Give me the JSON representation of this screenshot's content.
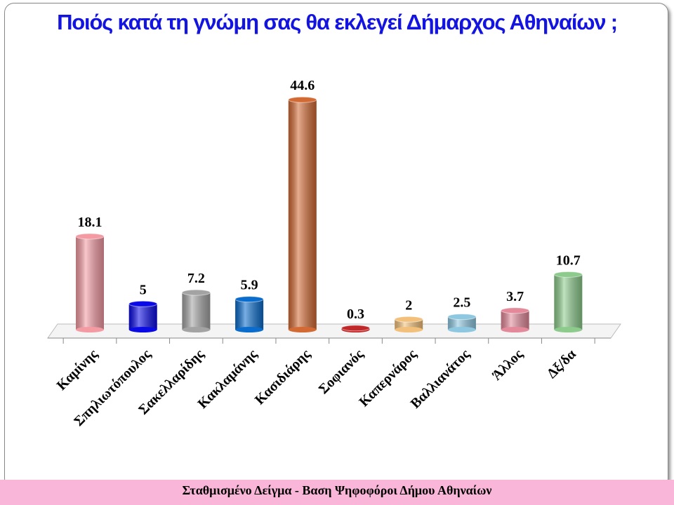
{
  "chart_data": {
    "type": "bar",
    "title": "Ποιός κατά τη γνώμη σας θα εκλεγεί Δήμαρχος Αθηναίων ;",
    "categories": [
      "Καμίνης",
      "Σπηλιωτόπουλος",
      "Σακελλαρίδης",
      "Κακλαμάνης",
      "Κασιδιάρης",
      "Σοφιανός",
      "Καπερνάρος",
      "Βαλλιανάτος",
      "Άλλος",
      "Δξ/δα"
    ],
    "values": [
      18.1,
      5,
      7.2,
      5.9,
      44.6,
      0.3,
      2,
      2.5,
      3.7,
      10.7
    ],
    "colors": [
      "#f39aa3",
      "#0a0ae6",
      "#a3a3a3",
      "#0a6ccc",
      "#d36a34",
      "#c0282a",
      "#f2c07a",
      "#8ec7e0",
      "#e3899a",
      "#8ccb8c"
    ],
    "footnote": "Σταθμισμένο Δείγμα  - Βαση Ψηφοφόροι Δήμου Αθηναίων"
  }
}
